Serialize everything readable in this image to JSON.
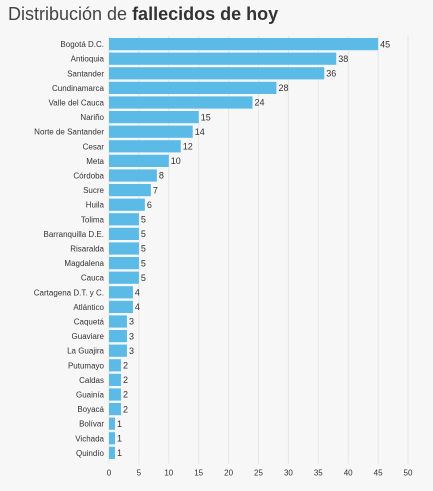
{
  "chart_data": {
    "type": "bar",
    "orientation": "horizontal",
    "title_prefix": "Distribución de ",
    "title_bold": "fallecidos de hoy",
    "categories": [
      "Bogotá D.C.",
      "Antioquia",
      "Santander",
      "Cundinamarca",
      "Valle del Cauca",
      "Nariño",
      "Norte de Santander",
      "Cesar",
      "Meta",
      "Córdoba",
      "Sucre",
      "Huila",
      "Tolima",
      "Barranquilla D.E.",
      "Risaralda",
      "Magdalena",
      "Cauca",
      "Cartagena D.T. y C.",
      "Atlántico",
      "Caquetá",
      "Guaviare",
      "La Guajira",
      "Putumayo",
      "Caldas",
      "Guainía",
      "Boyacá",
      "Bolívar",
      "Vichada",
      "Quindío"
    ],
    "values": [
      45,
      38,
      36,
      28,
      24,
      15,
      14,
      12,
      10,
      8,
      7,
      6,
      5,
      5,
      5,
      5,
      5,
      4,
      4,
      3,
      3,
      3,
      2,
      2,
      2,
      2,
      1,
      1,
      1
    ],
    "xlim": [
      0,
      50
    ],
    "xticks": [
      "0",
      "5",
      "10",
      "15",
      "20",
      "25",
      "30",
      "35",
      "40",
      "45",
      "50"
    ],
    "bar_color": "#5bbbe6",
    "grid": true,
    "legend": "none"
  }
}
